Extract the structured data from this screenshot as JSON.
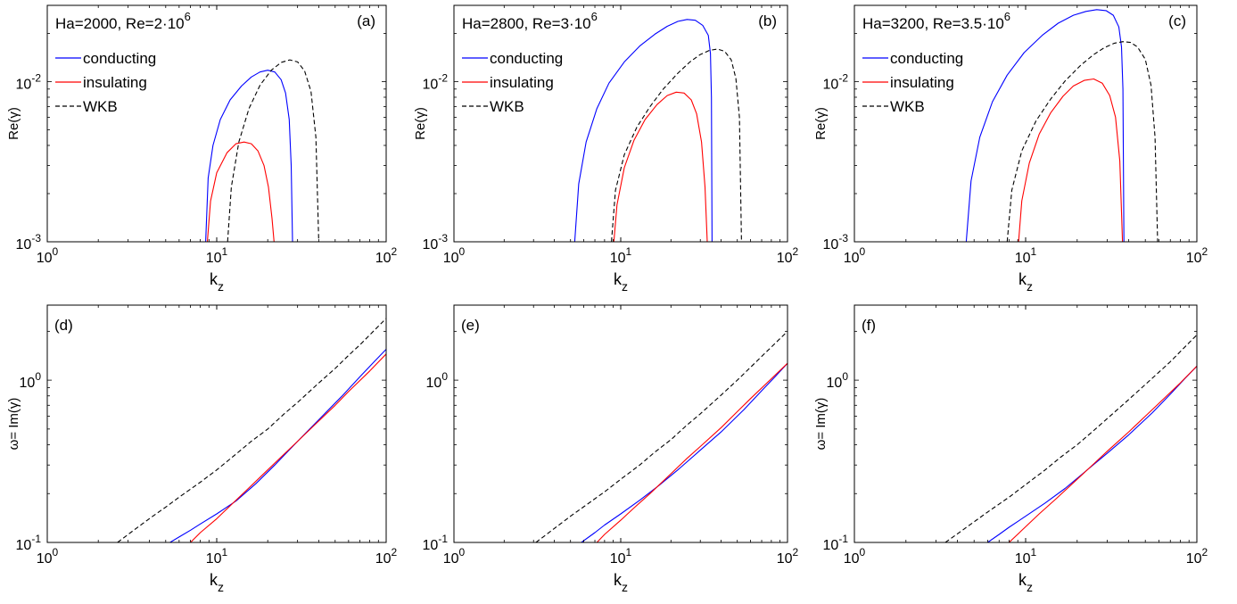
{
  "figure": {
    "x_tick_labels": [
      {
        "base": "10",
        "exp": "0"
      },
      {
        "base": "10",
        "exp": "1"
      },
      {
        "base": "10",
        "exp": "2"
      }
    ],
    "xlabel": {
      "main": "k",
      "sub": "z"
    },
    "legend_entries": [
      {
        "label": "conducting",
        "color": "#0000ff",
        "dash": false
      },
      {
        "label": "insulating",
        "color": "#ff0000",
        "dash": false
      },
      {
        "label": "WKB",
        "color": "#000000",
        "dash": true
      }
    ]
  },
  "chart_data": [
    {
      "type": "line",
      "panel": "(a)",
      "title": "Ha=2000, Re=2·10",
      "title_exp": "6",
      "xscale": "log",
      "yscale": "log",
      "xlim": [
        1,
        100
      ],
      "ylim": [
        0.001,
        0.03
      ],
      "xlabel": "k_z",
      "ylabel": "Re(γ)",
      "legend": "top-left",
      "y_tick_labels": [
        {
          "base": "10",
          "exp": "-3",
          "value": 0.001
        },
        {
          "base": "10",
          "exp": "-2",
          "value": 0.01
        }
      ],
      "series": [
        {
          "name": "conducting",
          "color": "#0000ff",
          "dash": false,
          "x": [
            8.6,
            8.9,
            9.5,
            10.5,
            12,
            14,
            16,
            18,
            20,
            22,
            24,
            25.5,
            26.8,
            27.5,
            28
          ],
          "y": [
            0.001,
            0.0025,
            0.004,
            0.0058,
            0.0077,
            0.0094,
            0.0107,
            0.0115,
            0.0118,
            0.0115,
            0.0103,
            0.0085,
            0.0058,
            0.003,
            0.001
          ]
        },
        {
          "name": "insulating",
          "color": "#ff0000",
          "dash": false,
          "x": [
            8.8,
            9.2,
            10,
            11.5,
            13,
            14.5,
            16,
            17.5,
            19,
            20.2,
            21.2,
            21.8
          ],
          "y": [
            0.001,
            0.0018,
            0.0027,
            0.0036,
            0.0041,
            0.0042,
            0.0041,
            0.0037,
            0.003,
            0.0022,
            0.0014,
            0.001
          ]
        },
        {
          "name": "WKB",
          "color": "#000000",
          "dash": true,
          "x": [
            11.6,
            12.2,
            13.5,
            15.5,
            18,
            21,
            24,
            27,
            30,
            33,
            36,
            38.5,
            40
          ],
          "y": [
            0.001,
            0.0022,
            0.0042,
            0.0068,
            0.0095,
            0.0118,
            0.0132,
            0.0137,
            0.0133,
            0.0117,
            0.0087,
            0.0045,
            0.001
          ]
        }
      ]
    },
    {
      "type": "line",
      "panel": "(b)",
      "title": "Ha=2800, Re=3·10",
      "title_exp": "6",
      "xscale": "log",
      "yscale": "log",
      "xlim": [
        1,
        100
      ],
      "ylim": [
        0.001,
        0.03
      ],
      "xlabel": "k_z",
      "ylabel": "Re(γ)",
      "legend": "top-left",
      "y_tick_labels": [
        {
          "base": "10",
          "exp": "-3",
          "value": 0.001
        },
        {
          "base": "10",
          "exp": "-2",
          "value": 0.01
        }
      ],
      "series": [
        {
          "name": "conducting",
          "color": "#0000ff",
          "dash": false,
          "x": [
            5.3,
            5.6,
            6.2,
            7.2,
            8.5,
            10.5,
            13,
            16,
            19,
            22,
            25,
            28,
            31,
            33.5,
            34.5,
            35,
            35.3
          ],
          "y": [
            0.001,
            0.0023,
            0.0042,
            0.0068,
            0.0098,
            0.0133,
            0.0167,
            0.0198,
            0.0222,
            0.0238,
            0.0245,
            0.0242,
            0.0225,
            0.0195,
            0.015,
            0.008,
            0.001
          ]
        },
        {
          "name": "insulating",
          "color": "#ff0000",
          "dash": false,
          "x": [
            9.1,
            9.5,
            10.5,
            12,
            14,
            16.5,
            19,
            21.5,
            24,
            26.5,
            28.5,
            30.5,
            32,
            33
          ],
          "y": [
            0.001,
            0.0017,
            0.0029,
            0.0043,
            0.0058,
            0.0072,
            0.0082,
            0.0086,
            0.0085,
            0.0077,
            0.0063,
            0.0042,
            0.0022,
            0.001
          ]
        },
        {
          "name": "WKB",
          "color": "#000000",
          "dash": true,
          "x": [
            8.8,
            9.3,
            10.5,
            12.5,
            15,
            18,
            22,
            26,
            30,
            34,
            38,
            42,
            46,
            49,
            51.5,
            53
          ],
          "y": [
            0.001,
            0.0021,
            0.0035,
            0.0052,
            0.007,
            0.009,
            0.0113,
            0.0133,
            0.0148,
            0.0157,
            0.016,
            0.0155,
            0.0137,
            0.0105,
            0.006,
            0.001
          ]
        }
      ]
    },
    {
      "type": "line",
      "panel": "(c)",
      "title": "Ha=3200, Re=3.5·10",
      "title_exp": "6",
      "xscale": "log",
      "yscale": "log",
      "xlim": [
        1,
        100
      ],
      "ylim": [
        0.001,
        0.03
      ],
      "xlabel": "k_z",
      "ylabel": "Re(γ)",
      "legend": "top-left",
      "y_tick_labels": [
        {
          "base": "10",
          "exp": "-3",
          "value": 0.001
        },
        {
          "base": "10",
          "exp": "-2",
          "value": 0.01
        }
      ],
      "series": [
        {
          "name": "conducting",
          "color": "#0000ff",
          "dash": false,
          "x": [
            4.5,
            4.8,
            5.4,
            6.4,
            7.8,
            9.8,
            12.5,
            15.5,
            19,
            22.5,
            26,
            29.5,
            32.5,
            35,
            36.3,
            37,
            37.5
          ],
          "y": [
            0.001,
            0.0024,
            0.0045,
            0.0075,
            0.011,
            0.0152,
            0.0195,
            0.0232,
            0.026,
            0.0275,
            0.0282,
            0.0278,
            0.026,
            0.022,
            0.0165,
            0.009,
            0.001
          ]
        },
        {
          "name": "insulating",
          "color": "#ff0000",
          "dash": false,
          "x": [
            9.1,
            9.5,
            10.5,
            12,
            14,
            16.5,
            19,
            22,
            25,
            28,
            31,
            33.5,
            35.5,
            36.8
          ],
          "y": [
            0.001,
            0.0018,
            0.0031,
            0.0047,
            0.0064,
            0.0081,
            0.0094,
            0.0102,
            0.0104,
            0.0098,
            0.0082,
            0.006,
            0.0032,
            0.001
          ]
        },
        {
          "name": "WKB",
          "color": "#000000",
          "dash": true,
          "x": [
            7.8,
            8.3,
            9.5,
            11.5,
            14,
            17,
            21,
            25,
            29,
            33,
            37,
            41,
            45,
            50,
            54,
            57,
            59
          ],
          "y": [
            0.001,
            0.0021,
            0.0037,
            0.0057,
            0.0078,
            0.0101,
            0.0127,
            0.0148,
            0.0164,
            0.0174,
            0.0178,
            0.0176,
            0.0165,
            0.0138,
            0.0095,
            0.0045,
            0.001
          ]
        }
      ]
    },
    {
      "type": "line",
      "panel": "(d)",
      "title": "",
      "xscale": "log",
      "yscale": "log",
      "xlim": [
        1,
        100
      ],
      "ylim": [
        0.1,
        2.9
      ],
      "xlabel": "k_z",
      "ylabel": "ω= Im(γ)",
      "y_tick_labels": [
        {
          "base": "10",
          "exp": "-1",
          "value": 0.1
        },
        {
          "base": "10",
          "exp": "0",
          "value": 1
        }
      ],
      "series": [
        {
          "name": "conducting",
          "color": "#0000ff",
          "dash": false,
          "x": [
            5.3,
            6,
            7,
            8,
            10,
            13,
            17,
            22,
            30,
            40,
            55,
            70,
            85,
            100
          ],
          "y": [
            0.1,
            0.108,
            0.119,
            0.13,
            0.15,
            0.18,
            0.23,
            0.3,
            0.42,
            0.57,
            0.8,
            1.05,
            1.3,
            1.55
          ]
        },
        {
          "name": "insulating",
          "color": "#ff0000",
          "dash": false,
          "x": [
            7,
            8,
            10,
            12,
            15,
            20,
            25,
            30,
            40,
            50,
            60,
            80,
            100
          ],
          "y": [
            0.1,
            0.115,
            0.14,
            0.168,
            0.21,
            0.28,
            0.35,
            0.42,
            0.56,
            0.7,
            0.85,
            1.14,
            1.45
          ]
        },
        {
          "name": "WKB",
          "color": "#000000",
          "dash": true,
          "x": [
            2.6,
            3,
            4,
            5,
            6,
            8,
            10,
            13,
            16,
            20,
            25,
            30,
            40,
            50,
            60,
            70,
            80,
            90,
            100
          ],
          "y": [
            0.1,
            0.112,
            0.14,
            0.165,
            0.19,
            0.235,
            0.28,
            0.35,
            0.42,
            0.5,
            0.62,
            0.73,
            0.96,
            1.18,
            1.42,
            1.65,
            1.9,
            2.15,
            2.4
          ]
        }
      ]
    },
    {
      "type": "line",
      "panel": "(e)",
      "title": "",
      "xscale": "log",
      "yscale": "log",
      "xlim": [
        1,
        100
      ],
      "ylim": [
        0.1,
        2.9
      ],
      "xlabel": "k_z",
      "ylabel": "",
      "y_tick_labels": [
        {
          "base": "10",
          "exp": "-1",
          "value": 0.1
        },
        {
          "base": "10",
          "exp": "0",
          "value": 1
        }
      ],
      "series": [
        {
          "name": "conducting",
          "color": "#0000ff",
          "dash": false,
          "x": [
            5.8,
            7,
            8,
            10,
            13,
            17,
            22,
            30,
            40,
            55,
            70,
            85,
            100
          ],
          "y": [
            0.1,
            0.115,
            0.128,
            0.15,
            0.182,
            0.225,
            0.28,
            0.37,
            0.48,
            0.66,
            0.86,
            1.06,
            1.27
          ]
        },
        {
          "name": "insulating",
          "color": "#ff0000",
          "dash": false,
          "x": [
            7.2,
            8,
            10,
            12,
            15,
            20,
            25,
            30,
            40,
            50,
            60,
            80,
            100
          ],
          "y": [
            0.1,
            0.112,
            0.137,
            0.163,
            0.2,
            0.265,
            0.33,
            0.39,
            0.51,
            0.64,
            0.77,
            1.02,
            1.27
          ]
        },
        {
          "name": "WKB",
          "color": "#000000",
          "dash": true,
          "x": [
            3.1,
            4,
            5,
            6,
            8,
            10,
            13,
            16,
            20,
            25,
            30,
            40,
            50,
            60,
            70,
            80,
            90,
            100
          ],
          "y": [
            0.1,
            0.122,
            0.145,
            0.166,
            0.205,
            0.245,
            0.3,
            0.36,
            0.43,
            0.53,
            0.62,
            0.81,
            1.0,
            1.2,
            1.4,
            1.6,
            1.8,
            2.0
          ]
        }
      ]
    },
    {
      "type": "line",
      "panel": "(f)",
      "title": "",
      "xscale": "log",
      "yscale": "log",
      "xlim": [
        1,
        100
      ],
      "ylim": [
        0.1,
        2.9
      ],
      "xlabel": "k_z",
      "ylabel": "ω= Im(γ)",
      "y_tick_labels": [
        {
          "base": "10",
          "exp": "-1",
          "value": 0.1
        },
        {
          "base": "10",
          "exp": "0",
          "value": 1
        }
      ],
      "series": [
        {
          "name": "conducting",
          "color": "#0000ff",
          "dash": false,
          "x": [
            6,
            7,
            8,
            10,
            13,
            17,
            22,
            30,
            40,
            55,
            70,
            85,
            100
          ],
          "y": [
            0.1,
            0.112,
            0.124,
            0.145,
            0.175,
            0.215,
            0.27,
            0.355,
            0.46,
            0.63,
            0.82,
            1.02,
            1.22
          ]
        },
        {
          "name": "insulating",
          "color": "#ff0000",
          "dash": false,
          "x": [
            8,
            10,
            12,
            15,
            20,
            25,
            30,
            40,
            50,
            60,
            80,
            100
          ],
          "y": [
            0.1,
            0.125,
            0.15,
            0.185,
            0.245,
            0.305,
            0.365,
            0.48,
            0.6,
            0.72,
            0.96,
            1.22
          ]
        },
        {
          "name": "WKB",
          "color": "#000000",
          "dash": true,
          "x": [
            3.4,
            4,
            5,
            6,
            8,
            10,
            13,
            16,
            20,
            25,
            30,
            40,
            50,
            60,
            70,
            80,
            90,
            100
          ],
          "y": [
            0.1,
            0.113,
            0.134,
            0.154,
            0.19,
            0.227,
            0.28,
            0.335,
            0.4,
            0.49,
            0.58,
            0.76,
            0.94,
            1.12,
            1.3,
            1.5,
            1.7,
            1.9
          ]
        }
      ]
    }
  ]
}
